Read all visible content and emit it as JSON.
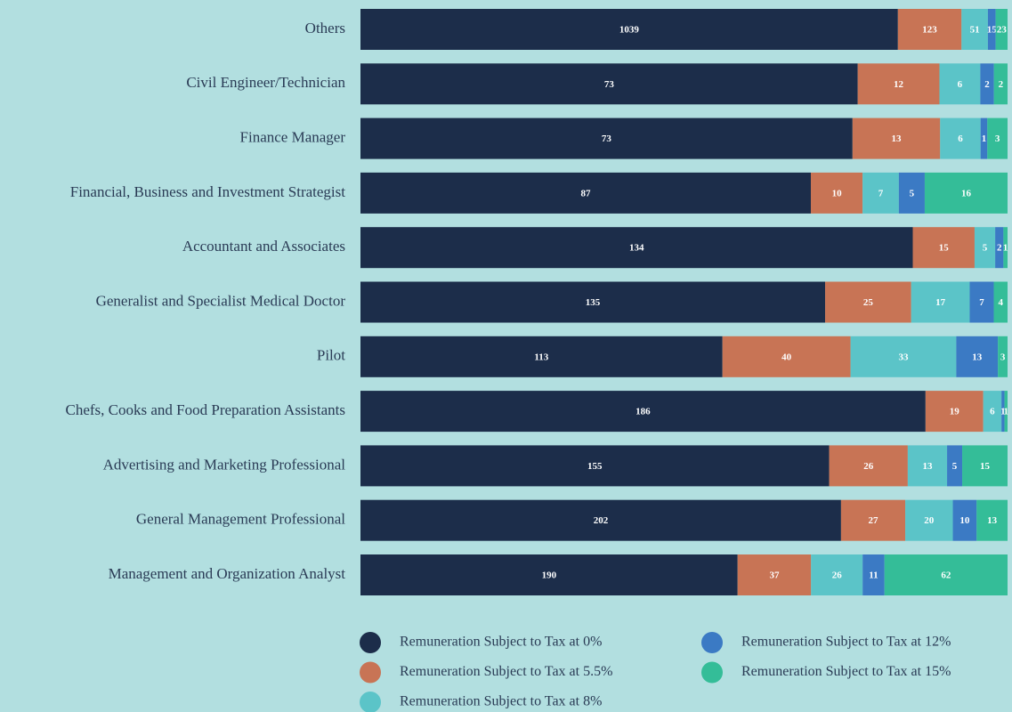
{
  "chart_data": {
    "type": "bar",
    "orientation": "horizontal",
    "stacked": true,
    "normalized": true,
    "categories": [
      "Others",
      "Civil Engineer/Technician",
      "Finance Manager",
      "Financial, Business and Investment Strategist",
      "Accountant and Associates",
      "Generalist and Specialist Medical Doctor",
      "Pilot",
      "Chefs, Cooks and Food Preparation Assistants",
      "Advertising and Marketing Professional",
      "General Management Professional",
      "Management and Organization Analyst"
    ],
    "series": [
      {
        "name": "Remuneration Subject to Tax at 0%",
        "color": "#1c2d4a",
        "values": [
          1039,
          73,
          73,
          87,
          134,
          135,
          113,
          186,
          155,
          202,
          190
        ]
      },
      {
        "name": "Remuneration Subject to Tax at 5.5%",
        "color": "#c87455",
        "values": [
          123,
          12,
          13,
          10,
          15,
          25,
          40,
          19,
          26,
          27,
          37
        ]
      },
      {
        "name": "Remuneration Subject to Tax at 8%",
        "color": "#5bc4c8",
        "values": [
          51,
          6,
          6,
          7,
          5,
          17,
          33,
          6,
          13,
          20,
          26
        ]
      },
      {
        "name": "Remuneration Subject to Tax at 12%",
        "color": "#3b7ac4",
        "values": [
          15,
          2,
          1,
          5,
          2,
          7,
          13,
          1,
          5,
          10,
          11
        ]
      },
      {
        "name": "Remuneration Subject to Tax at 15%",
        "color": "#34bd98",
        "values": [
          23,
          2,
          3,
          16,
          1,
          4,
          3,
          1,
          15,
          13,
          62
        ]
      }
    ],
    "legend": "bottom"
  }
}
